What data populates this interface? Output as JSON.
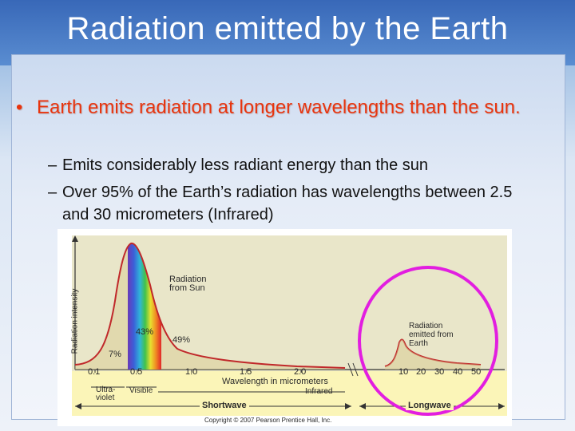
{
  "slide": {
    "title": "Radiation emitted by the Earth",
    "bullet": "Earth emits radiation at longer wavelengths than the sun.",
    "subbullets": [
      "Emits considerably less radiant energy than the sun",
      "Over 95% of the Earth’s radiation has wavelengths between 2.5 and 30 micrometers (Infrared)"
    ]
  },
  "figure": {
    "y_axis_label": "Radiation intensity",
    "sun_label": "Radiation from Sun",
    "earth_label": "Radiation emitted from Earth",
    "pct_uv": "7%",
    "pct_visible": "43%",
    "pct_ir": "49%",
    "x_ticks_left": [
      "0.1",
      "0.5",
      "1.0",
      "1.5",
      "2.0"
    ],
    "x_ticks_right": [
      "10",
      "20",
      "30",
      "40",
      "50"
    ],
    "x_axis_label": "Wavelength in micrometers",
    "band_uv": "Ultra-violet",
    "band_visible": "Visible",
    "band_infrared": "Infrared",
    "band_shortwave": "Shortwave",
    "band_longwave": "Longwave",
    "copyright": "Copyright © 2007 Pearson Prentice Hall, Inc.",
    "highlight_color": "#e21ee0"
  }
}
